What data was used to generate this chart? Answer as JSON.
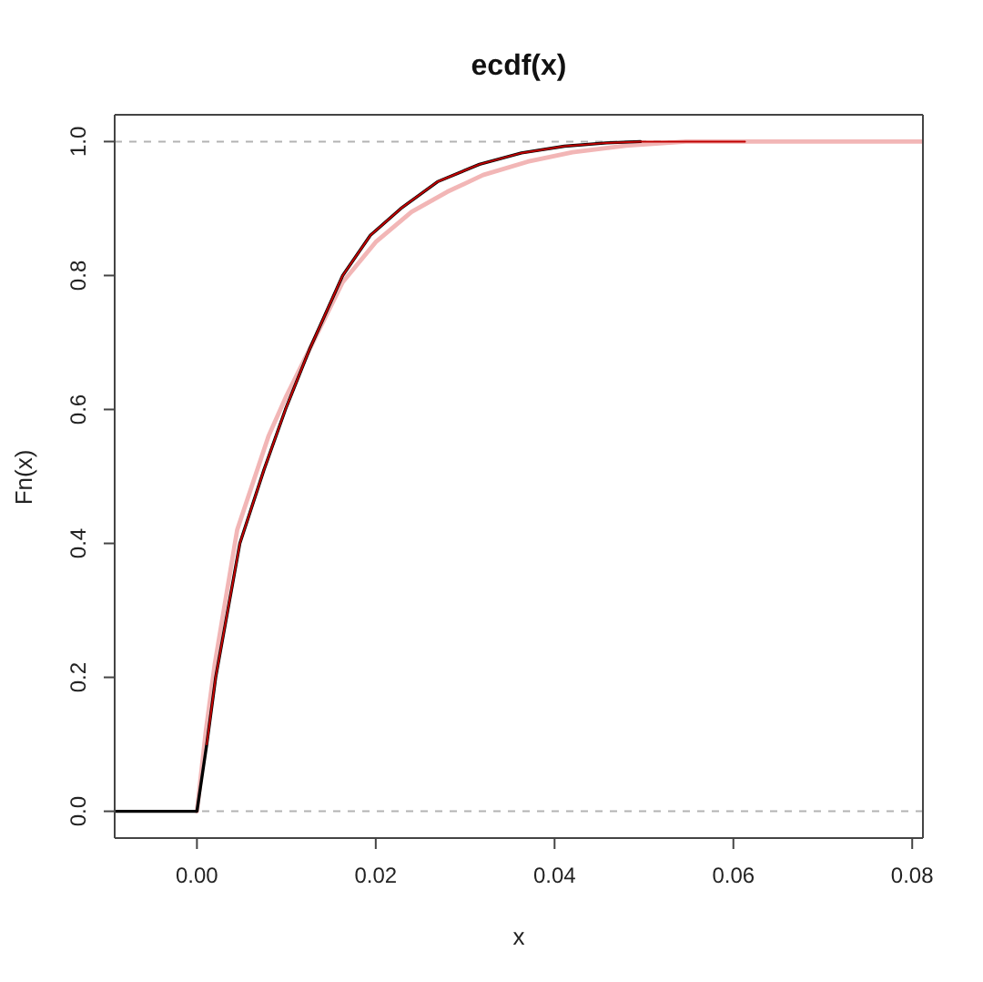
{
  "chart_data": {
    "type": "line",
    "title": "ecdf(x)",
    "xlabel": "x",
    "ylabel": "Fn(x)",
    "xlim": [
      -0.0092,
      0.0812
    ],
    "ylim": [
      -0.04,
      1.04
    ],
    "xticks": [
      {
        "value": 0,
        "label": "0.00"
      },
      0.02,
      0.04,
      0.06,
      0.08
    ],
    "yticks": [
      {
        "value": 0,
        "label": "0.0"
      },
      0.2,
      0.4,
      0.6,
      0.8,
      {
        "value": 1,
        "label": "1.0"
      }
    ],
    "ref_lines": [
      {
        "axis": "y",
        "value": 0,
        "color": "#b3b3b3",
        "line_style": "dashed"
      },
      {
        "axis": "y",
        "value": 1,
        "color": "#b3b3b3",
        "line_style": "dashed"
      }
    ],
    "series": [
      {
        "color": "#f2b6b6",
        "x": [
          0,
          0.001,
          0.002,
          0.0045,
          0.008,
          0.01,
          0.0126,
          0.0163,
          0.02,
          0.024,
          0.028,
          0.032,
          0.037,
          0.042,
          0.048,
          0.0547,
          0.0812
        ],
        "values": [
          0,
          0.12,
          0.22,
          0.42,
          0.56,
          0.62,
          0.69,
          0.79,
          0.85,
          0.895,
          0.925,
          0.95,
          0.97,
          0.984,
          0.994,
          1.0,
          1.0
        ]
      },
      {
        "color": "#000000",
        "x": [
          -0.0092,
          0,
          0.0011,
          0.0021,
          0.0048,
          0.0075,
          0.0099,
          0.0126,
          0.0163,
          0.0194,
          0.0228,
          0.0269,
          0.0316,
          0.0363,
          0.0411,
          0.0458,
          0.0496
        ],
        "values": [
          0,
          0,
          0.1,
          0.2,
          0.4,
          0.51,
          0.6,
          0.69,
          0.8,
          0.86,
          0.9,
          0.94,
          0.966,
          0.983,
          0.993,
          0.998,
          1.0
        ]
      },
      {
        "color": "#c00000",
        "x": [
          0.0011,
          0.0021,
          0.0048,
          0.0075,
          0.0099,
          0.0126,
          0.0163,
          0.0194,
          0.0228,
          0.0269,
          0.0316,
          0.0363,
          0.0411,
          0.0458,
          0.0496,
          0.0613
        ],
        "values": [
          0.1,
          0.2,
          0.4,
          0.51,
          0.6,
          0.69,
          0.8,
          0.86,
          0.9,
          0.94,
          0.966,
          0.983,
          0.993,
          0.998,
          1.0,
          1.0
        ]
      }
    ]
  }
}
